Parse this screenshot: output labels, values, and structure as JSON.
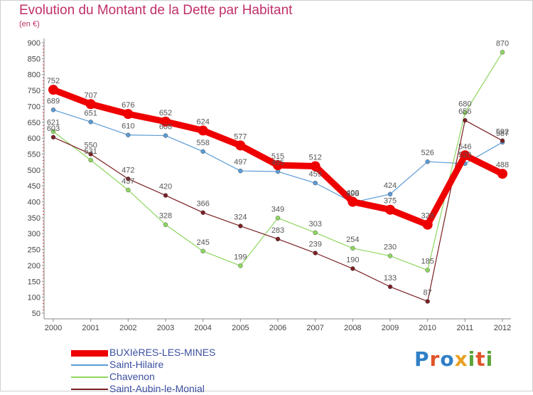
{
  "header": {
    "title": "Evolution du Montant de la Dette par Habitant",
    "subtitle": "(en €)"
  },
  "logo": {
    "letters": [
      {
        "ch": "P",
        "color": "#2f7fc8"
      },
      {
        "ch": "r",
        "color": "#e0542a"
      },
      {
        "ch": "o",
        "color": "#2f7fc8"
      },
      {
        "ch": "x",
        "color": "#e8a020"
      },
      {
        "ch": "i",
        "color": "#5aa53a"
      },
      {
        "ch": "t",
        "color": "#e0542a"
      },
      {
        "ch": "i",
        "color": "#5aa53a"
      }
    ]
  },
  "chart_data": {
    "type": "line",
    "title": "Evolution du Montant de la Dette par Habitant",
    "subtitle": "(en €)",
    "xlabel": "",
    "ylabel": "",
    "x": [
      "2000",
      "2001",
      "2002",
      "2003",
      "2004",
      "2005",
      "2006",
      "2007",
      "2008",
      "2009",
      "2010",
      "2011",
      "2012"
    ],
    "ylim": [
      50,
      900
    ],
    "yticks": [
      50,
      100,
      150,
      200,
      250,
      300,
      350,
      400,
      450,
      500,
      550,
      600,
      650,
      700,
      750,
      800,
      850,
      900
    ],
    "grid": false,
    "legend_position": "bottom-left",
    "series": [
      {
        "name": "BUXIèRES-LES-MINES",
        "color": "#ee0000",
        "width": 9,
        "marker": 7,
        "values": [
          752,
          707,
          676,
          652,
          624,
          577,
          515,
          512,
          400,
          375,
          328,
          546,
          488
        ],
        "labels": [
          "752",
          "707",
          "676",
          "652",
          "624",
          "577",
          "515",
          "512",
          "400",
          "375",
          "328",
          "546",
          "488"
        ]
      },
      {
        "name": "Saint-Hilaire",
        "color": "#5b9bd5",
        "width": 1.2,
        "marker": 3,
        "values": [
          689,
          651,
          610,
          608,
          558,
          497,
          495,
          459,
          398,
          424,
          526,
          520,
          587
        ],
        "labels": [
          "689",
          "651",
          "610",
          "608",
          "558",
          "497",
          "495",
          "459",
          "398",
          "424",
          "526",
          "520",
          "587"
        ]
      },
      {
        "name": "Chavenon",
        "color": "#8ed65f",
        "width": 1.2,
        "marker": 3,
        "values": [
          621,
          531,
          437,
          328,
          245,
          199,
          349,
          303,
          254,
          230,
          185,
          680,
          870
        ],
        "labels": [
          "621",
          "531",
          "437",
          "328",
          "245",
          "199",
          "349",
          "303",
          "254",
          "230",
          "185",
          "680",
          "870"
        ]
      },
      {
        "name": "Saint-Aubin-le-Monial",
        "color": "#7a1f23",
        "width": 1.2,
        "marker": 3,
        "values": [
          603,
          550,
          472,
          420,
          366,
          324,
          283,
          239,
          190,
          133,
          87,
          656,
          592
        ],
        "labels": [
          "603",
          "550",
          "472",
          "420",
          "366",
          "324",
          "283",
          "239",
          "190",
          "133",
          "87",
          "656",
          "592"
        ]
      }
    ]
  }
}
